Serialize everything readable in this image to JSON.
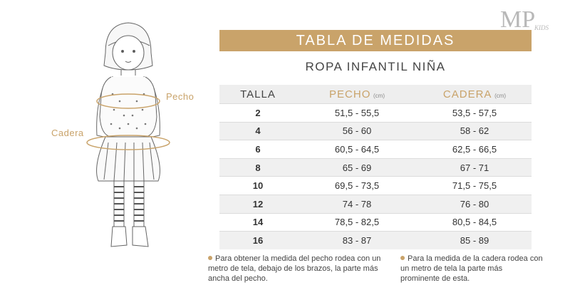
{
  "logo": {
    "main": "MP",
    "sub": "KIDS"
  },
  "title": "TABLA DE MEDIDAS",
  "subtitle": "ROPA INFANTIL NIÑA",
  "labels": {
    "chest": "Pecho",
    "hip": "Cadera"
  },
  "table": {
    "headers": {
      "size": "TALLA",
      "chest": "PECHO",
      "hip": "CADERA",
      "unit": "(cm)"
    },
    "rows": [
      {
        "size": "2",
        "chest": "51,5 - 55,5",
        "hip": "53,5 - 57,5"
      },
      {
        "size": "4",
        "chest": "56 - 60",
        "hip": "58 - 62"
      },
      {
        "size": "6",
        "chest": "60,5 - 64,5",
        "hip": "62,5 - 66,5"
      },
      {
        "size": "8",
        "chest": "65 - 69",
        "hip": "67 - 71"
      },
      {
        "size": "10",
        "chest": "69,5 - 73,5",
        "hip": "71,5 - 75,5"
      },
      {
        "size": "12",
        "chest": "74 - 78",
        "hip": "76 - 80"
      },
      {
        "size": "14",
        "chest": "78,5 - 82,5",
        "hip": "80,5 - 84,5"
      },
      {
        "size": "16",
        "chest": "83 - 87",
        "hip": "85 - 89"
      }
    ]
  },
  "notes": {
    "chest": "Para obtener la medida del pecho rodea con un metro de tela, debajo de los brazos, la parte más ancha del pecho.",
    "hip": "Para la medida de la cadera rodea con un metro de tela la parte más prominente de esta."
  },
  "colors": {
    "accent": "#c9a36a"
  }
}
